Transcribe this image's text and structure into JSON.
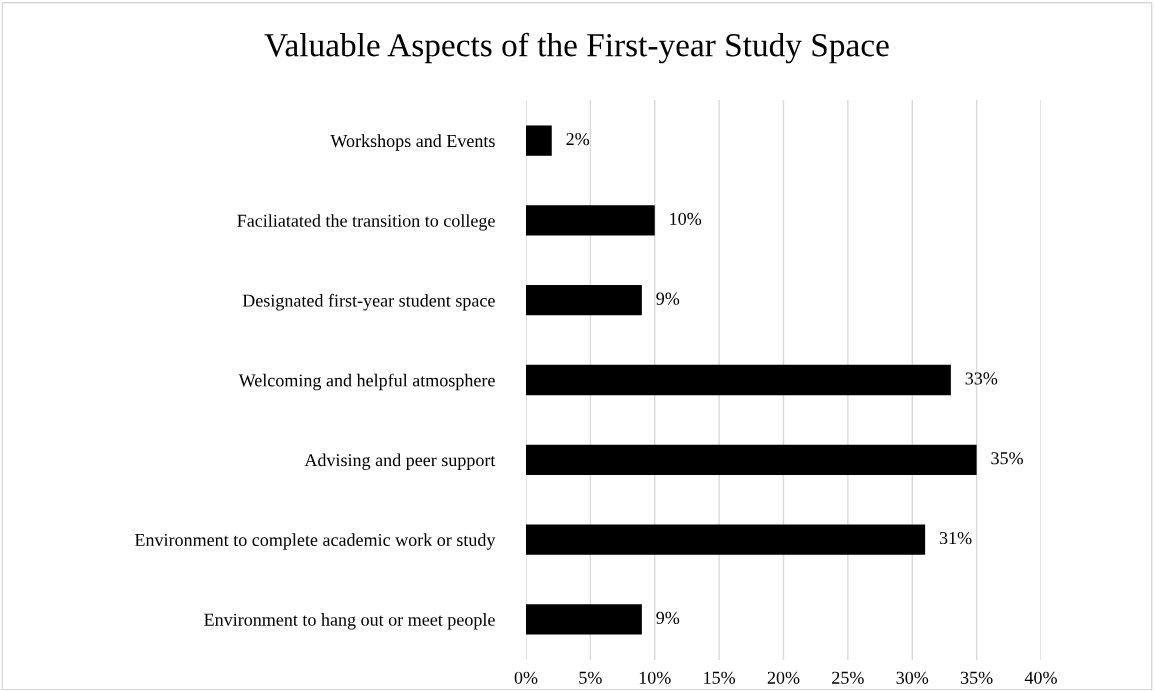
{
  "chart_data": {
    "type": "bar",
    "orientation": "horizontal",
    "title": "Valuable Aspects of the First-year Study Space",
    "categories": [
      "Workshops and Events",
      "Faciliatated the transition to college",
      "Designated first-year student space",
      "Welcoming and helpful atmosphere",
      "Advising and peer support",
      "Environment to complete academic work or study",
      "Environment to hang out or meet people"
    ],
    "values": [
      2,
      10,
      9,
      33,
      35,
      31,
      9
    ],
    "value_labels": [
      "2%",
      "10%",
      "9%",
      "33%",
      "35%",
      "31%",
      "9%"
    ],
    "color": "#000000",
    "xlim": [
      0,
      40
    ],
    "xticks": [
      {
        "value": 0,
        "label": "0%"
      },
      {
        "value": 5,
        "label": "5%"
      },
      {
        "value": 10,
        "label": "10%"
      },
      {
        "value": 15,
        "label": "15%"
      },
      {
        "value": 20,
        "label": "20%"
      },
      {
        "value": 25,
        "label": "25%"
      },
      {
        "value": 30,
        "label": "30%"
      },
      {
        "value": 35,
        "label": "35%"
      },
      {
        "value": 40,
        "label": "40%"
      }
    ],
    "grid": "x",
    "legend": false
  }
}
